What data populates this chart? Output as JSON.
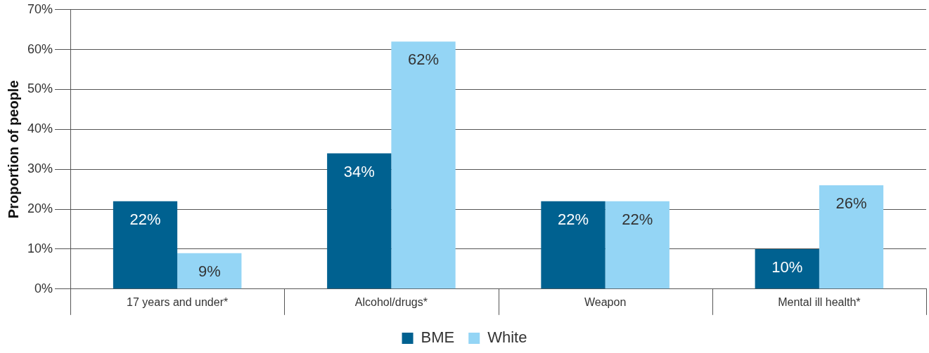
{
  "chart_data": {
    "type": "bar",
    "ylabel": "Proportion of people",
    "categories": [
      "17 years and under*",
      "Alcohol/drugs*",
      "Weapon",
      "Mental ill health*"
    ],
    "series": [
      {
        "name": "BME",
        "color": "#006190",
        "values": [
          22,
          34,
          22,
          10
        ],
        "value_labels": [
          "22%",
          "34%",
          "22%",
          "10%"
        ]
      },
      {
        "name": "White",
        "color": "#94d5f5",
        "values": [
          9,
          62,
          22,
          26
        ],
        "value_labels": [
          "9%",
          "62%",
          "22%",
          "26%"
        ]
      }
    ],
    "ylim": [
      0,
      70
    ],
    "yticks": [
      {
        "value": 0,
        "label": "0%"
      },
      {
        "value": 10,
        "label": "10%"
      },
      {
        "value": 20,
        "label": "20%"
      },
      {
        "value": 30,
        "label": "30%"
      },
      {
        "value": 40,
        "label": "40%"
      },
      {
        "value": 50,
        "label": "50%"
      },
      {
        "value": 60,
        "label": "60%"
      },
      {
        "value": 70,
        "label": "70%"
      }
    ],
    "grid": "y",
    "legend": "bottom"
  }
}
